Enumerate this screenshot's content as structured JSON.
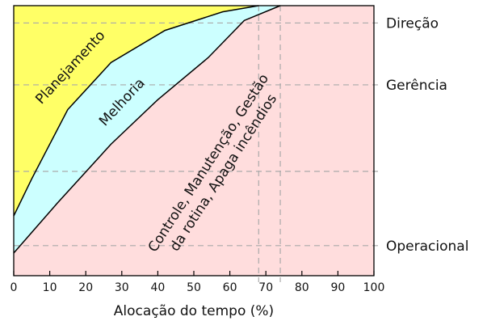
{
  "chart_data": {
    "type": "area",
    "xlabel": "Alocação do tempo (%)",
    "xlim": [
      0,
      100
    ],
    "x_ticks": [
      0,
      10,
      20,
      30,
      40,
      50,
      60,
      70,
      80,
      90,
      100
    ],
    "levels": [
      {
        "name": "Direção",
        "position": 0.93
      },
      {
        "name": "Gerência",
        "position": 0.68
      },
      {
        "name": "",
        "position": 0.33
      },
      {
        "name": "Operacional",
        "position": 0.03
      }
    ],
    "boundaries": [
      {
        "name": "planejamento-melhoria",
        "points": [
          [
            0,
            0.15
          ],
          [
            5,
            0.3
          ],
          [
            15,
            0.58
          ],
          [
            27,
            0.77
          ],
          [
            42,
            0.9
          ],
          [
            58,
            0.975
          ],
          [
            68,
            1.0
          ]
        ]
      },
      {
        "name": "melhoria-rotina",
        "points": [
          [
            0,
            0.0
          ],
          [
            12,
            0.2
          ],
          [
            27,
            0.44
          ],
          [
            40,
            0.62
          ],
          [
            54,
            0.79
          ],
          [
            64,
            0.94
          ],
          [
            74,
            1.0
          ]
        ]
      }
    ],
    "vlines": [
      68,
      74
    ],
    "regions": [
      {
        "label": "Planejamento",
        "color": "#ffff66"
      },
      {
        "label": "Melhoria",
        "color": "#ccffff"
      },
      {
        "label_lines": [
          "Controle, Manutenção, Gestão",
          "da rotina, Apaga incêndios"
        ],
        "color": "#ffdddd"
      }
    ]
  }
}
